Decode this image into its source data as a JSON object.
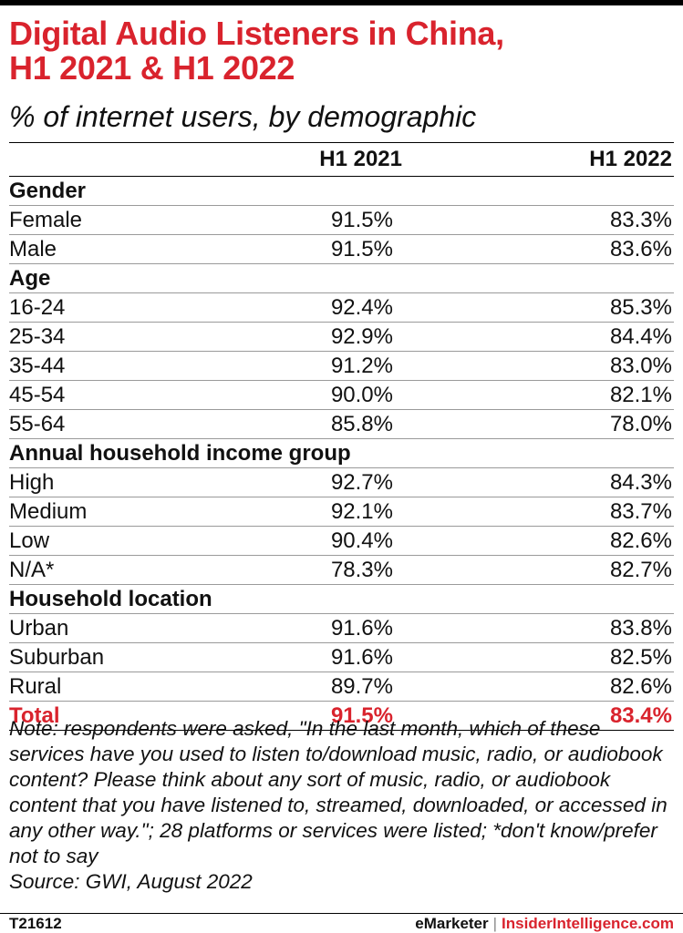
{
  "title_line1": "Digital Audio Listeners in China,",
  "title_line2": "H1 2021 & H1 2022",
  "subtitle": "% of internet users, by demographic",
  "columns": [
    "H1 2021",
    "H1 2022"
  ],
  "chart_data": {
    "type": "table",
    "title": "Digital Audio Listeners in China, H1 2021 & H1 2022",
    "subtitle": "% of internet users, by demographic",
    "columns": [
      "H1 2021",
      "H1 2022"
    ],
    "rows": [
      {
        "label": "Gender",
        "group": true
      },
      {
        "label": "Female",
        "v1": "91.5%",
        "v2": "83.3%"
      },
      {
        "label": "Male",
        "v1": "91.5%",
        "v2": "83.6%"
      },
      {
        "label": "Age",
        "group": true
      },
      {
        "label": "16-24",
        "v1": "92.4%",
        "v2": "85.3%"
      },
      {
        "label": "25-34",
        "v1": "92.9%",
        "v2": "84.4%"
      },
      {
        "label": "35-44",
        "v1": "91.2%",
        "v2": "83.0%"
      },
      {
        "label": "45-54",
        "v1": "90.0%",
        "v2": "82.1%"
      },
      {
        "label": "55-64",
        "v1": "85.8%",
        "v2": "78.0%"
      },
      {
        "label": "Annual household income group",
        "group": true
      },
      {
        "label": "High",
        "v1": "92.7%",
        "v2": "84.3%"
      },
      {
        "label": "Medium",
        "v1": "92.1%",
        "v2": "83.7%"
      },
      {
        "label": "Low",
        "v1": "90.4%",
        "v2": "82.6%"
      },
      {
        "label": "N/A*",
        "v1": "78.3%",
        "v2": "82.7%"
      },
      {
        "label": "Household location",
        "group": true
      },
      {
        "label": "Urban",
        "v1": "91.6%",
        "v2": "83.8%"
      },
      {
        "label": "Suburban",
        "v1": "91.6%",
        "v2": "82.5%"
      },
      {
        "label": "Rural",
        "v1": "89.7%",
        "v2": "82.6%"
      },
      {
        "label": "Total",
        "v1": "91.5%",
        "v2": "83.4%",
        "total": true
      }
    ]
  },
  "note": "Note: respondents were asked, \"In the last month, which of these services have you used to listen to/download music, radio, or audiobook content? Please think about any sort of music, radio, or audiobook content that you have listened to, streamed, downloaded, or accessed in any other way.\"; 28 platforms or services were listed; *don't know/prefer not to say",
  "source": "Source: GWI, August 2022",
  "footer": {
    "id": "T21612",
    "brand1": "eMarketer",
    "separator": "|",
    "brand2": "InsiderIntelligence.com"
  },
  "colors": {
    "accent": "#d9232d",
    "text": "#111111"
  }
}
